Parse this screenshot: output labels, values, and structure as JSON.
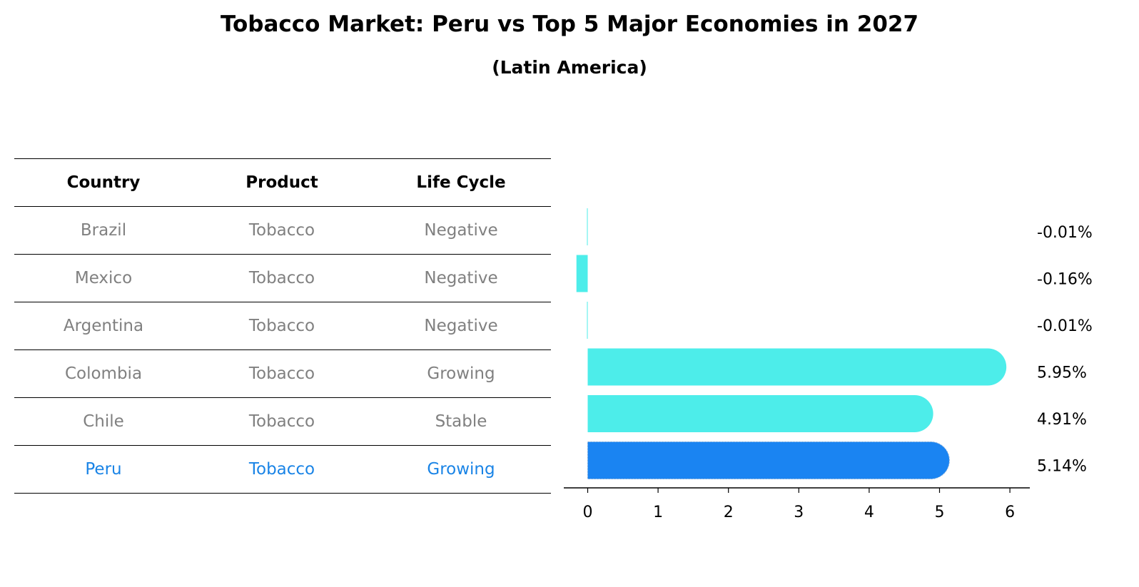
{
  "title": "Tobacco Market: Peru vs Top 5 Major Economies in 2027",
  "subtitle": "(Latin America)",
  "table": {
    "headers": [
      "Country",
      "Product",
      "Life Cycle"
    ],
    "rows": [
      [
        "Brazil",
        "Tobacco",
        "Negative"
      ],
      [
        "Mexico",
        "Tobacco",
        "Negative"
      ],
      [
        "Argentina",
        "Tobacco",
        "Negative"
      ],
      [
        "Colombia",
        "Tobacco",
        "Growing"
      ],
      [
        "Chile",
        "Tobacco",
        "Stable"
      ],
      [
        "Peru",
        "Tobacco",
        "Growing"
      ]
    ],
    "highlight_row": 5
  },
  "colors": {
    "bar": "#4dedea",
    "highlight_bar": "#1a84f2",
    "highlight_text": "#1a84e6",
    "muted_text": "#808080"
  },
  "chart_data": {
    "type": "bar",
    "orientation": "horizontal",
    "categories": [
      "Brazil",
      "Mexico",
      "Argentina",
      "Colombia",
      "Chile",
      "Peru"
    ],
    "values": [
      -0.01,
      -0.16,
      -0.01,
      5.95,
      4.91,
      5.14
    ],
    "value_labels": [
      "-0.01%",
      "-0.16%",
      "-0.01%",
      "5.95%",
      "4.91%",
      "5.14%"
    ],
    "highlight_index": 5,
    "xlim": [
      -0.48,
      6.28
    ],
    "xticks": [
      0,
      1,
      2,
      3,
      4,
      5,
      6
    ],
    "xlabel": "",
    "ylabel": ""
  }
}
